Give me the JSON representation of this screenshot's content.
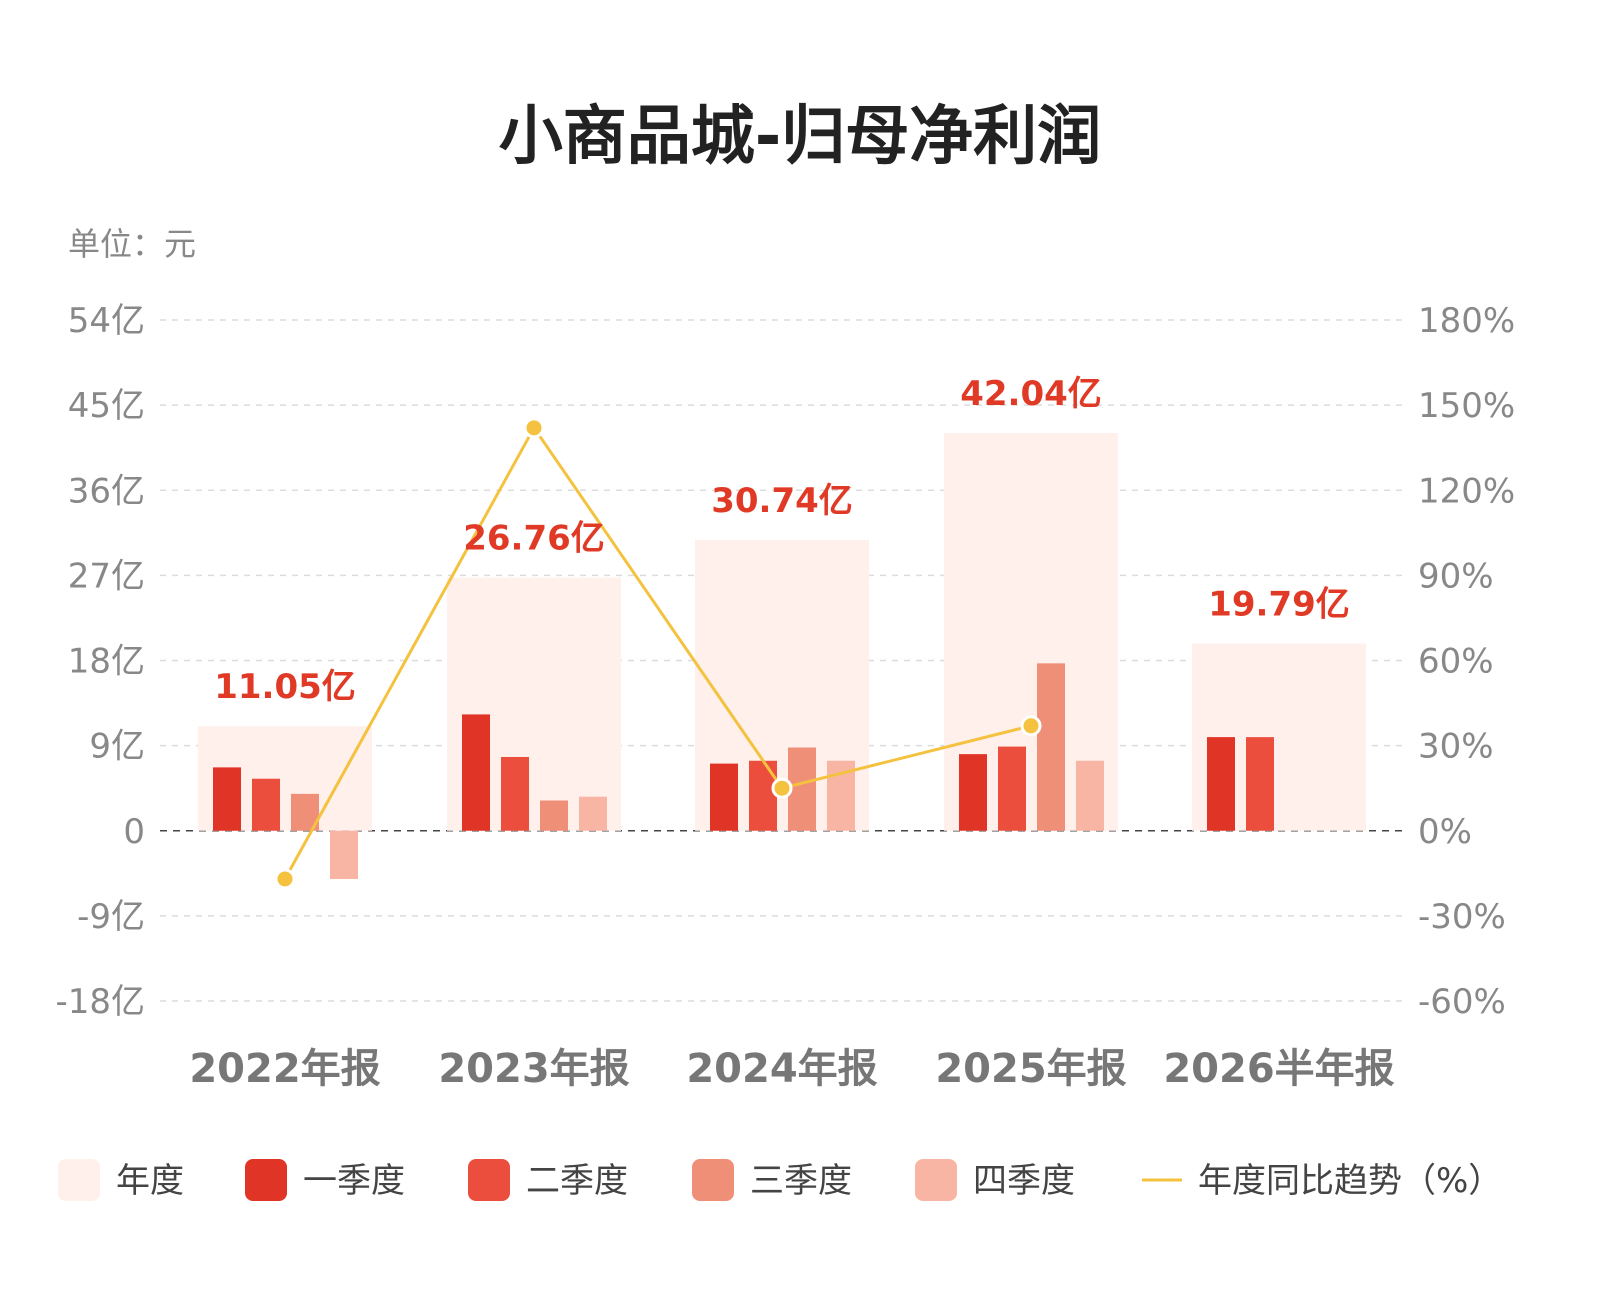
{
  "chart_data": {
    "type": "bar",
    "title": "小商品城-归母净利润",
    "unit_label": "单位：元",
    "categories": [
      "2022年报",
      "2023年报",
      "2024年报",
      "2025年报",
      "2026半年报"
    ],
    "annual": {
      "name": "年度",
      "values": [
        11.05,
        26.76,
        30.74,
        42.04,
        19.79
      ],
      "labels": [
        "11.05亿",
        "26.76亿",
        "30.74亿",
        "42.04亿",
        "19.79亿"
      ]
    },
    "series": [
      {
        "name": "一季度",
        "values": [
          6.7,
          12.3,
          7.1,
          8.1,
          9.9
        ]
      },
      {
        "name": "二季度",
        "values": [
          5.5,
          7.8,
          7.4,
          8.9,
          9.9
        ]
      },
      {
        "name": "三季度",
        "values": [
          3.9,
          3.2,
          8.8,
          17.7,
          null
        ]
      },
      {
        "name": "四季度",
        "values": [
          -5.1,
          3.6,
          7.4,
          7.4,
          null
        ]
      }
    ],
    "trend": {
      "name": "年度同比趋势（%）",
      "values": [
        -17,
        142,
        15,
        37,
        null
      ]
    },
    "y_left": {
      "min": -18,
      "max": 54,
      "ticks": [
        54,
        45,
        36,
        27,
        18,
        9,
        0,
        -9,
        -18
      ],
      "tick_labels": [
        "54亿",
        "45亿",
        "36亿",
        "27亿",
        "18亿",
        "9亿",
        "0",
        "-9亿",
        "-18亿"
      ]
    },
    "y_right": {
      "min": -60,
      "max": 180,
      "ticks": [
        180,
        150,
        120,
        90,
        60,
        30,
        0,
        -30,
        -60
      ],
      "tick_labels": [
        "180%",
        "150%",
        "120%",
        "90%",
        "60%",
        "30%",
        "0%",
        "-30%",
        "-60%"
      ]
    },
    "grid": true,
    "legend_position": "bottom",
    "colors": {
      "annual": "#fff0ec",
      "q1": "#df3426",
      "q2": "#ec4e3e",
      "q3": "#f08f78",
      "q4": "#f9b5a3",
      "trend": "#f4c23e",
      "label": "#e03a26"
    }
  }
}
